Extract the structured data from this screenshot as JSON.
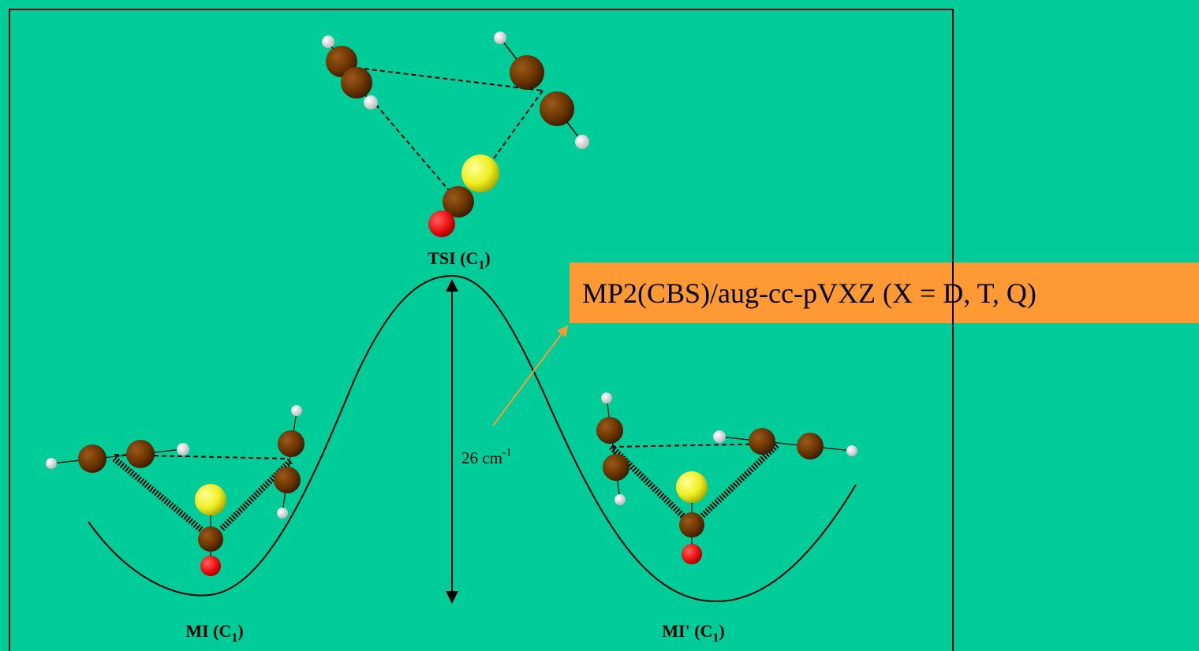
{
  "states": [
    {
      "name": "TSI (C",
      "sub": "1",
      "close": ")"
    },
    {
      "name": "MI (C",
      "sub": "1",
      "close": ")"
    },
    {
      "name": "MI' (C",
      "sub": "1",
      "close": ")"
    }
  ],
  "barrier": {
    "text": "26 cm",
    "sup": "-1"
  },
  "method": "MP2(CBS)/aug-cc-pVXZ (X = D, T, Q)"
}
